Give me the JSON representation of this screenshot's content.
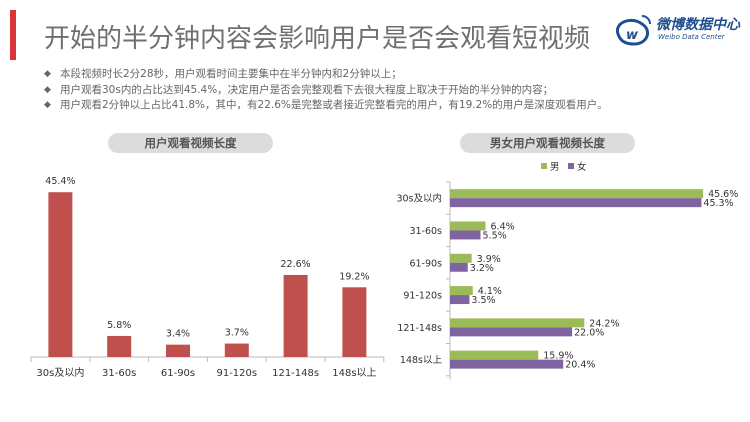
{
  "title": "开始的半分钟内容会影响用户是否会观看短视频",
  "logo": {
    "cn": "微博数据中心",
    "en": "Weibo Data Center"
  },
  "bullets": [
    "本段视频时长2分28秒，用户观看时间主要集中在半分钟内和2分钟以上；",
    "用户观看30s内的占比达到45.4%，决定用户是否会完整观看下去很大程度上取决于开始的半分钟的内容；",
    "用户观看2分钟以上占比41.8%，其中，有22.6%是完整或者接近完整看完的用户，有19.2%的用户是深度观看用户。"
  ],
  "chart_data": [
    {
      "type": "bar",
      "title": "用户观看视频长度",
      "categories": [
        "30s及以内",
        "31-60s",
        "61-90s",
        "91-120s",
        "121-148s",
        "148s以上"
      ],
      "values": [
        45.4,
        5.8,
        3.4,
        3.7,
        22.6,
        19.2
      ],
      "labels": [
        "45.4%",
        "5.8%",
        "3.4%",
        "3.7%",
        "22.6%",
        "19.2%"
      ],
      "color": "#c0504d",
      "grid": false
    },
    {
      "type": "bar",
      "orientation": "horizontal",
      "title": "男女用户观看视频长度",
      "categories": [
        "30s及以内",
        "31-60s",
        "61-90s",
        "91-120s",
        "121-148s",
        "148s以上"
      ],
      "series": [
        {
          "name": "男",
          "color": "#9bbb59",
          "values": [
            45.6,
            6.4,
            3.9,
            4.1,
            24.2,
            15.9
          ],
          "labels": [
            "45.6%",
            "6.4%",
            "3.9%",
            "4.1%",
            "24.2%",
            "15.9%"
          ]
        },
        {
          "name": "女",
          "color": "#8064a2",
          "values": [
            45.3,
            5.5,
            3.2,
            3.5,
            22.0,
            20.4
          ],
          "labels": [
            "45.3%",
            "5.5%",
            "3.2%",
            "3.5%",
            "22.0%",
            "20.4%"
          ]
        }
      ],
      "legend": "top",
      "grid": false
    }
  ]
}
